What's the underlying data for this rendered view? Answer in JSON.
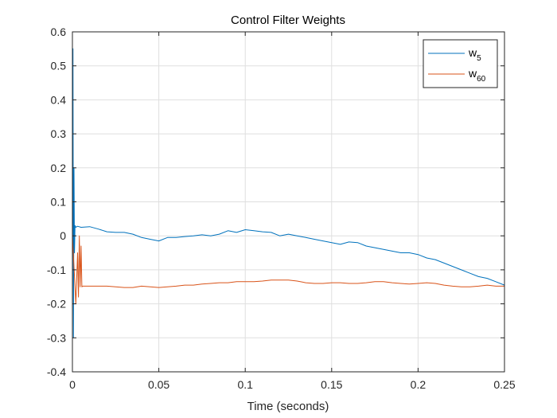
{
  "chart_data": {
    "type": "line",
    "title": "Control Filter Weights",
    "xlabel": "Time (seconds)",
    "ylabel": "",
    "xlim": [
      0,
      0.25
    ],
    "ylim": [
      -0.4,
      0.6
    ],
    "x_ticks": [
      "0",
      "0.05",
      "0.1",
      "0.15",
      "0.2",
      "0.25"
    ],
    "y_ticks": [
      "0.6",
      "0.5",
      "0.4",
      "0.3",
      "0.2",
      "0.1",
      "0",
      "-0.1",
      "-0.2",
      "-0.3",
      "-0.4"
    ],
    "grid": true,
    "legend_position": "top-right",
    "series": [
      {
        "name": "w",
        "subscript": "5",
        "color": "#0072BD",
        "x": [
          0,
          0.0003,
          0.0006,
          0.0009,
          0.0012,
          0.0015,
          0.002,
          0.003,
          0.005,
          0.01,
          0.015,
          0.02,
          0.025,
          0.03,
          0.035,
          0.04,
          0.045,
          0.05,
          0.055,
          0.06,
          0.065,
          0.07,
          0.075,
          0.08,
          0.085,
          0.09,
          0.095,
          0.1,
          0.105,
          0.11,
          0.115,
          0.12,
          0.125,
          0.13,
          0.135,
          0.14,
          0.145,
          0.15,
          0.155,
          0.16,
          0.165,
          0.17,
          0.175,
          0.18,
          0.185,
          0.19,
          0.195,
          0.2,
          0.205,
          0.21,
          0.215,
          0.22,
          0.225,
          0.23,
          0.235,
          0.24,
          0.245,
          0.25
        ],
        "y": [
          0,
          0.55,
          -0.3,
          0.2,
          -0.05,
          0.03,
          0.025,
          0.028,
          0.025,
          0.027,
          0.02,
          0.012,
          0.01,
          0.01,
          0.005,
          -0.005,
          -0.01,
          -0.015,
          -0.005,
          -0.005,
          -0.002,
          0.0,
          0.003,
          0.0,
          0.005,
          0.015,
          0.01,
          0.018,
          0.015,
          0.012,
          0.01,
          0.0,
          0.005,
          0.0,
          -0.005,
          -0.01,
          -0.015,
          -0.02,
          -0.025,
          -0.018,
          -0.02,
          -0.03,
          -0.035,
          -0.04,
          -0.045,
          -0.05,
          -0.05,
          -0.055,
          -0.065,
          -0.07,
          -0.08,
          -0.09,
          -0.1,
          -0.11,
          -0.12,
          -0.125,
          -0.135,
          -0.145
        ]
      },
      {
        "name": "w",
        "subscript": "60",
        "color": "#D95319",
        "x": [
          0,
          0.001,
          0.002,
          0.003,
          0.0035,
          0.004,
          0.0045,
          0.005,
          0.0055,
          0.006,
          0.01,
          0.015,
          0.02,
          0.025,
          0.03,
          0.035,
          0.04,
          0.045,
          0.05,
          0.055,
          0.06,
          0.065,
          0.07,
          0.075,
          0.08,
          0.085,
          0.09,
          0.095,
          0.1,
          0.105,
          0.11,
          0.115,
          0.12,
          0.125,
          0.13,
          0.135,
          0.14,
          0.145,
          0.15,
          0.155,
          0.16,
          0.165,
          0.17,
          0.175,
          0.18,
          0.185,
          0.19,
          0.195,
          0.2,
          0.205,
          0.21,
          0.215,
          0.22,
          0.225,
          0.23,
          0.235,
          0.24,
          0.245,
          0.25
        ],
        "y": [
          0,
          -0.1,
          -0.2,
          -0.05,
          -0.18,
          0.0,
          -0.15,
          -0.03,
          -0.15,
          -0.148,
          -0.148,
          -0.148,
          -0.148,
          -0.15,
          -0.152,
          -0.152,
          -0.148,
          -0.15,
          -0.152,
          -0.15,
          -0.148,
          -0.145,
          -0.145,
          -0.142,
          -0.14,
          -0.138,
          -0.138,
          -0.135,
          -0.135,
          -0.135,
          -0.133,
          -0.13,
          -0.13,
          -0.13,
          -0.133,
          -0.138,
          -0.14,
          -0.14,
          -0.138,
          -0.138,
          -0.14,
          -0.14,
          -0.138,
          -0.135,
          -0.135,
          -0.138,
          -0.14,
          -0.142,
          -0.14,
          -0.138,
          -0.14,
          -0.145,
          -0.148,
          -0.15,
          -0.15,
          -0.148,
          -0.145,
          -0.148,
          -0.148
        ]
      }
    ]
  }
}
